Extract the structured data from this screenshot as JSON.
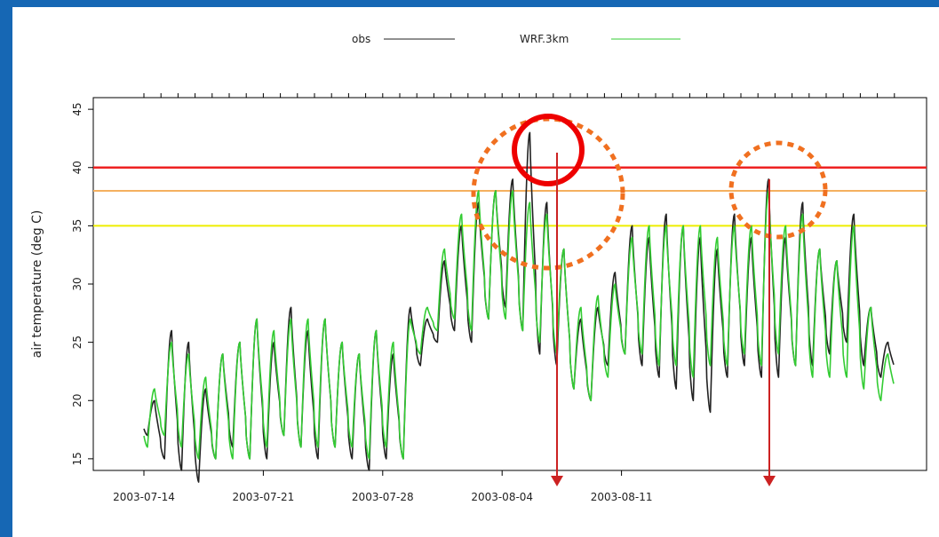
{
  "chart_data": {
    "type": "line",
    "ylabel": "air temperature (deg C)",
    "xlabel": "",
    "ylim": [
      14,
      46
    ],
    "x_ticks": [
      "2003-07-14",
      "2003-07-21",
      "2003-07-28",
      "2003-08-04",
      "2003-08-11"
    ],
    "y_ticks": [
      15,
      20,
      25,
      30,
      35,
      40,
      45
    ],
    "legend": {
      "placement": "top",
      "entries": [
        {
          "name": "obs",
          "color": "#222222"
        },
        {
          "name": "WRF.3km",
          "color": "#33cc33"
        }
      ]
    },
    "series": [
      {
        "name": "obs",
        "color": "#222222",
        "day_min": [
          17,
          15,
          14,
          13,
          15,
          16,
          15,
          15,
          17,
          16,
          15,
          16,
          15,
          14,
          15,
          15,
          23,
          25,
          26,
          25,
          27,
          28,
          26,
          24,
          23,
          21,
          20,
          23,
          24,
          23,
          22,
          21,
          20,
          19,
          22,
          23,
          22,
          22,
          23,
          23,
          24,
          25,
          23,
          22
        ],
        "day_max": [
          20,
          26,
          25,
          21,
          24,
          25,
          27,
          25,
          28,
          26,
          27,
          25,
          24,
          26,
          24,
          28,
          27,
          32,
          35,
          37,
          38,
          39,
          43,
          37,
          33,
          27,
          28,
          31,
          35,
          34,
          36,
          35,
          34,
          33,
          36,
          34,
          39,
          34,
          37,
          33,
          32,
          36,
          28,
          25
        ]
      },
      {
        "name": "WRF.3km",
        "color": "#33cc33",
        "day_min": [
          16,
          17,
          16,
          15,
          15,
          15,
          15,
          16,
          17,
          16,
          16,
          16,
          16,
          15,
          16,
          15,
          24,
          26,
          27,
          26,
          27,
          27,
          26,
          25,
          24,
          21,
          20,
          22,
          24,
          24,
          23,
          23,
          22,
          23,
          23,
          24,
          23,
          24,
          23,
          22,
          22,
          22,
          21,
          20
        ],
        "day_max": [
          21,
          25,
          24,
          22,
          24,
          25,
          27,
          26,
          27,
          27,
          27,
          25,
          24,
          26,
          25,
          27,
          28,
          33,
          36,
          38,
          38,
          38,
          37,
          36,
          33,
          28,
          29,
          30,
          34,
          35,
          35,
          35,
          35,
          34,
          35,
          35,
          38,
          35,
          36,
          33,
          32,
          35,
          28,
          24
        ]
      }
    ],
    "thresholds": [
      {
        "value": 40,
        "color": "#ee2222"
      },
      {
        "value": 38,
        "color": "#f4b060"
      },
      {
        "value": 35,
        "color": "#eeee00"
      }
    ]
  },
  "annotations": {
    "solid_circle_color": "#ee0000",
    "dotted_circle_color": "#f07020",
    "arrow_color": "#cc2222"
  }
}
